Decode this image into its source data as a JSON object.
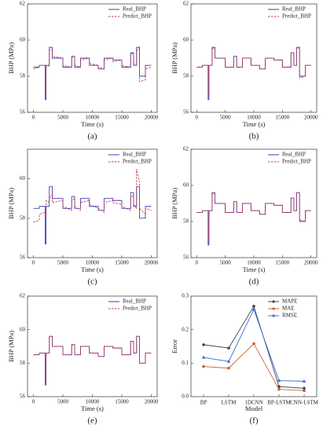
{
  "chart_data": [
    {
      "type": "line",
      "label": "(a)",
      "xlabel": "Time (s)",
      "ylabel": "BHP (MPa)",
      "xlim": [
        -1000,
        21000
      ],
      "xticks": [
        0,
        5000,
        10000,
        15000,
        20000
      ],
      "ylim": [
        56,
        62
      ],
      "yticks": [
        56,
        58,
        60,
        62
      ],
      "legend": "upper right",
      "x": [
        0,
        1000,
        1000,
        2000,
        2000,
        2150,
        2150,
        2700,
        2700,
        3200,
        3200,
        5000,
        5000,
        6500,
        6500,
        7000,
        7000,
        8000,
        8000,
        9500,
        9500,
        11000,
        11000,
        12000,
        12000,
        13500,
        13500,
        15000,
        15000,
        16500,
        16500,
        17000,
        17000,
        17500,
        17500,
        18000,
        18000,
        19000,
        19000,
        20000
      ],
      "series": [
        {
          "name": "Real_BHP",
          "color": "#3d3dbd",
          "style": "solid",
          "values": [
            58.5,
            58.5,
            58.6,
            58.6,
            56.7,
            56.7,
            58.6,
            58.6,
            59.6,
            59.6,
            59.0,
            59.0,
            58.5,
            58.5,
            59.1,
            59.1,
            58.5,
            58.5,
            59.0,
            59.0,
            58.6,
            58.6,
            58.4,
            58.4,
            59.0,
            59.0,
            58.9,
            58.9,
            58.5,
            58.5,
            59.3,
            59.3,
            58.6,
            58.6,
            59.6,
            59.6,
            58.0,
            58.0,
            58.6,
            58.6
          ]
        },
        {
          "name": "Predict_BHP",
          "color": "#c63a3a",
          "style": "dashed",
          "values": [
            58.4,
            58.5,
            58.6,
            58.6,
            57.0,
            56.9,
            58.5,
            58.6,
            59.4,
            59.5,
            59.1,
            59.0,
            58.6,
            58.5,
            59.0,
            59.1,
            58.6,
            58.5,
            58.9,
            59.0,
            58.7,
            58.6,
            58.5,
            58.4,
            58.9,
            59.0,
            58.8,
            58.9,
            58.6,
            58.5,
            59.2,
            59.3,
            58.7,
            58.6,
            59.4,
            59.6,
            57.7,
            57.8,
            58.4,
            58.5
          ]
        }
      ]
    },
    {
      "type": "line",
      "label": "(b)",
      "xlabel": "Time (s)",
      "ylabel": "BHP (MPa)",
      "xlim": [
        -1000,
        21000
      ],
      "xticks": [
        0,
        5000,
        10000,
        15000,
        20000
      ],
      "ylim": [
        56,
        62
      ],
      "yticks": [
        56,
        58,
        60,
        62
      ],
      "legend": "upper right",
      "x": [
        0,
        1000,
        1000,
        2000,
        2000,
        2150,
        2150,
        2700,
        2700,
        3200,
        3200,
        5000,
        5000,
        6500,
        6500,
        7000,
        7000,
        8000,
        8000,
        9500,
        9500,
        11000,
        11000,
        12000,
        12000,
        13500,
        13500,
        15000,
        15000,
        16500,
        16500,
        17000,
        17000,
        17500,
        17500,
        18000,
        18000,
        19000,
        19000,
        20000
      ],
      "series": [
        {
          "name": "Real_BHP",
          "color": "#3d3dbd",
          "style": "solid",
          "values": [
            58.5,
            58.5,
            58.6,
            58.6,
            56.7,
            56.7,
            58.6,
            58.6,
            59.6,
            59.6,
            59.0,
            59.0,
            58.5,
            58.5,
            59.1,
            59.1,
            58.5,
            58.5,
            59.0,
            59.0,
            58.6,
            58.6,
            58.4,
            58.4,
            59.0,
            59.0,
            58.9,
            58.9,
            58.5,
            58.5,
            59.3,
            59.3,
            58.6,
            58.6,
            59.6,
            59.6,
            58.0,
            58.0,
            58.6,
            58.6
          ]
        },
        {
          "name": "Predict_BHP",
          "color": "#c63a3a",
          "style": "dashed",
          "values": [
            58.5,
            58.5,
            58.6,
            58.6,
            57.2,
            57.0,
            58.6,
            58.6,
            59.5,
            59.6,
            59.0,
            59.0,
            58.5,
            58.5,
            59.1,
            59.1,
            58.5,
            58.5,
            59.0,
            59.0,
            58.6,
            58.6,
            58.4,
            58.4,
            59.0,
            59.0,
            58.9,
            58.9,
            58.5,
            58.5,
            59.3,
            59.3,
            58.6,
            58.6,
            59.5,
            59.6,
            57.9,
            58.0,
            58.6,
            58.6
          ]
        }
      ]
    },
    {
      "type": "line",
      "label": "(c)",
      "xlabel": "Time (s)",
      "ylabel": "BHP (MPa)",
      "xlim": [
        -1000,
        21000
      ],
      "xticks": [
        0,
        5000,
        10000,
        15000,
        20000
      ],
      "ylim": [
        56,
        61.5
      ],
      "yticks": [
        56,
        58,
        60
      ],
      "legend": "upper right",
      "x": [
        0,
        1000,
        1000,
        2000,
        2000,
        2150,
        2150,
        2700,
        2700,
        3200,
        3200,
        5000,
        5000,
        6500,
        6500,
        7000,
        7000,
        8000,
        8000,
        9500,
        9500,
        11000,
        11000,
        12000,
        12000,
        13500,
        13500,
        15000,
        15000,
        16500,
        16500,
        17000,
        17000,
        17500,
        17500,
        18000,
        18000,
        19000,
        19000,
        20000
      ],
      "series": [
        {
          "name": "Real_BHP",
          "color": "#3d3dbd",
          "style": "solid",
          "values": [
            58.5,
            58.5,
            58.6,
            58.6,
            56.7,
            56.7,
            58.6,
            58.6,
            59.6,
            59.6,
            59.0,
            59.0,
            58.5,
            58.5,
            59.1,
            59.1,
            58.5,
            58.5,
            59.0,
            59.0,
            58.6,
            58.6,
            58.4,
            58.4,
            59.0,
            59.0,
            58.9,
            58.9,
            58.5,
            58.5,
            59.3,
            59.3,
            58.6,
            58.6,
            59.6,
            59.6,
            58.0,
            58.0,
            58.6,
            58.6
          ]
        },
        {
          "name": "Predict_BHP",
          "color": "#c63a3a",
          "style": "dashed",
          "values": [
            57.8,
            57.9,
            58.2,
            58.3,
            58.0,
            58.1,
            58.9,
            58.8,
            59.0,
            59.2,
            58.8,
            58.9,
            58.6,
            58.4,
            58.9,
            59.0,
            58.6,
            58.4,
            58.8,
            58.9,
            58.7,
            58.5,
            58.5,
            58.3,
            58.8,
            58.9,
            58.8,
            58.7,
            58.6,
            58.4,
            59.0,
            59.2,
            58.7,
            58.5,
            60.5,
            59.8,
            58.5,
            58.2,
            58.5,
            58.4
          ]
        }
      ]
    },
    {
      "type": "line",
      "label": "(d)",
      "xlabel": "Time (s)",
      "ylabel": "BHP (MPa)",
      "xlim": [
        -1000,
        21000
      ],
      "xticks": [
        0,
        5000,
        10000,
        15000,
        20000
      ],
      "ylim": [
        56,
        62
      ],
      "yticks": [
        56,
        58,
        60,
        62
      ],
      "legend": "upper right",
      "x": [
        0,
        1000,
        1000,
        2000,
        2000,
        2150,
        2150,
        2700,
        2700,
        3200,
        3200,
        5000,
        5000,
        6500,
        6500,
        7000,
        7000,
        8000,
        8000,
        9500,
        9500,
        11000,
        11000,
        12000,
        12000,
        13500,
        13500,
        15000,
        15000,
        16500,
        16500,
        17000,
        17000,
        17500,
        17500,
        18000,
        18000,
        19000,
        19000,
        20000
      ],
      "series": [
        {
          "name": "Real_BHP",
          "color": "#3d3dbd",
          "style": "solid",
          "values": [
            58.5,
            58.5,
            58.6,
            58.6,
            56.7,
            56.7,
            58.6,
            58.6,
            59.6,
            59.6,
            59.0,
            59.0,
            58.5,
            58.5,
            59.1,
            59.1,
            58.5,
            58.5,
            59.0,
            59.0,
            58.6,
            58.6,
            58.4,
            58.4,
            59.0,
            59.0,
            58.9,
            58.9,
            58.5,
            58.5,
            59.3,
            59.3,
            58.6,
            58.6,
            59.6,
            59.6,
            58.0,
            58.0,
            58.6,
            58.6
          ]
        },
        {
          "name": "Predict_BHP",
          "color": "#c63a3a",
          "style": "dashed",
          "values": [
            58.5,
            58.5,
            58.6,
            58.6,
            57.1,
            56.9,
            58.6,
            58.6,
            59.5,
            59.6,
            59.0,
            59.0,
            58.5,
            58.5,
            59.1,
            59.1,
            58.5,
            58.5,
            59.0,
            59.0,
            58.6,
            58.6,
            58.4,
            58.4,
            59.0,
            59.0,
            58.9,
            58.9,
            58.5,
            58.5,
            59.3,
            59.3,
            58.6,
            58.6,
            59.6,
            59.6,
            58.1,
            58.0,
            58.6,
            58.6
          ]
        }
      ]
    },
    {
      "type": "line",
      "label": "(e)",
      "xlabel": "Time (s)",
      "ylabel": "BHP (MPa)",
      "xlim": [
        -1000,
        21000
      ],
      "xticks": [
        0,
        5000,
        10000,
        15000,
        20000
      ],
      "ylim": [
        56,
        62
      ],
      "yticks": [
        56,
        58,
        60,
        62
      ],
      "legend": "upper right",
      "x": [
        0,
        1000,
        1000,
        2000,
        2000,
        2150,
        2150,
        2700,
        2700,
        3200,
        3200,
        5000,
        5000,
        6500,
        6500,
        7000,
        7000,
        8000,
        8000,
        9500,
        9500,
        11000,
        11000,
        12000,
        12000,
        13500,
        13500,
        15000,
        15000,
        16500,
        16500,
        17000,
        17000,
        17500,
        17500,
        18000,
        18000,
        19000,
        19000,
        20000
      ],
      "series": [
        {
          "name": "Real_BHP",
          "color": "#3d3dbd",
          "style": "solid",
          "values": [
            58.5,
            58.5,
            58.6,
            58.6,
            56.7,
            56.7,
            58.6,
            58.6,
            59.6,
            59.6,
            59.0,
            59.0,
            58.5,
            58.5,
            59.1,
            59.1,
            58.5,
            58.5,
            59.0,
            59.0,
            58.6,
            58.6,
            58.4,
            58.4,
            59.0,
            59.0,
            58.9,
            58.9,
            58.5,
            58.5,
            59.3,
            59.3,
            58.6,
            58.6,
            59.6,
            59.6,
            58.0,
            58.0,
            58.6,
            58.6
          ]
        },
        {
          "name": "Predict_BHP",
          "color": "#c63a3a",
          "style": "dashed",
          "values": [
            58.5,
            58.5,
            58.6,
            58.6,
            56.8,
            56.7,
            58.6,
            58.6,
            59.6,
            59.6,
            59.0,
            59.0,
            58.5,
            58.5,
            59.1,
            59.1,
            58.5,
            58.5,
            59.0,
            59.0,
            58.6,
            58.6,
            58.4,
            58.4,
            59.0,
            59.0,
            58.9,
            58.9,
            58.5,
            58.5,
            59.3,
            59.3,
            58.6,
            58.6,
            59.6,
            59.6,
            58.0,
            58.0,
            58.6,
            58.6
          ]
        }
      ]
    },
    {
      "type": "category-line",
      "label": "(f)",
      "xlabel": "Model",
      "ylabel": "Error",
      "categories": [
        "BP",
        "LSTM",
        "1DCNN",
        "BP-LSTM",
        "CNN-LSTM"
      ],
      "ylim": [
        0,
        0.3
      ],
      "yticks": [
        {
          "value": 0,
          "label": "0.0"
        },
        0.1,
        0.2,
        0.3
      ],
      "legend": "upper right",
      "series": [
        {
          "name": "MAPE",
          "color": "#444444",
          "marker": "circle",
          "values": [
            0.155,
            0.145,
            0.27,
            0.03,
            0.025
          ]
        },
        {
          "name": "MAE",
          "color": "#c8603c",
          "marker": "circle",
          "values": [
            0.09,
            0.085,
            0.158,
            0.022,
            0.018
          ]
        },
        {
          "name": "RMSE",
          "color": "#3a6fd8",
          "marker": "triangle",
          "values": [
            0.117,
            0.105,
            0.26,
            0.048,
            0.046
          ]
        }
      ]
    }
  ]
}
